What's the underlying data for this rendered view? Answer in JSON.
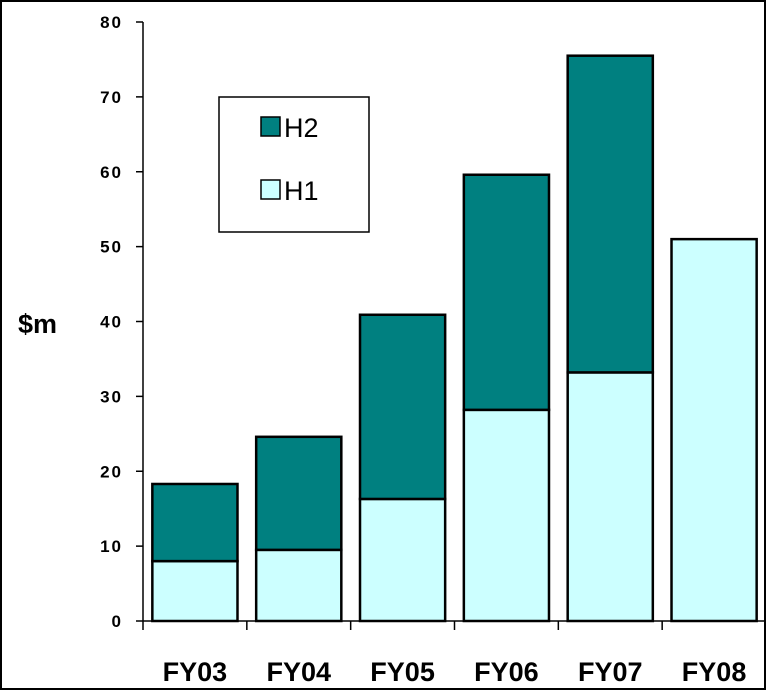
{
  "chart_data": {
    "type": "bar",
    "stacked": true,
    "categories": [
      "FY03",
      "FY04",
      "FY05",
      "FY06",
      "FY07",
      "FY08"
    ],
    "series": [
      {
        "name": "H1",
        "values": [
          8,
          9.5,
          16.3,
          28.2,
          33.2,
          51
        ],
        "color": "#ccffff"
      },
      {
        "name": "H2",
        "values": [
          10.3,
          15.1,
          24.6,
          31.4,
          42.3,
          null
        ],
        "color": "#008080"
      }
    ],
    "ylabel": "$m",
    "ylim": [
      0,
      80
    ],
    "yticks": [
      0,
      10,
      20,
      30,
      40,
      50,
      60,
      70,
      80
    ],
    "ytick_labels": [
      "0",
      "10",
      "20",
      "30",
      "40",
      "50",
      "60",
      "70",
      "80"
    ],
    "legend": {
      "position": "upper-left",
      "order": [
        "H2",
        "H1"
      ]
    },
    "grid": false
  }
}
